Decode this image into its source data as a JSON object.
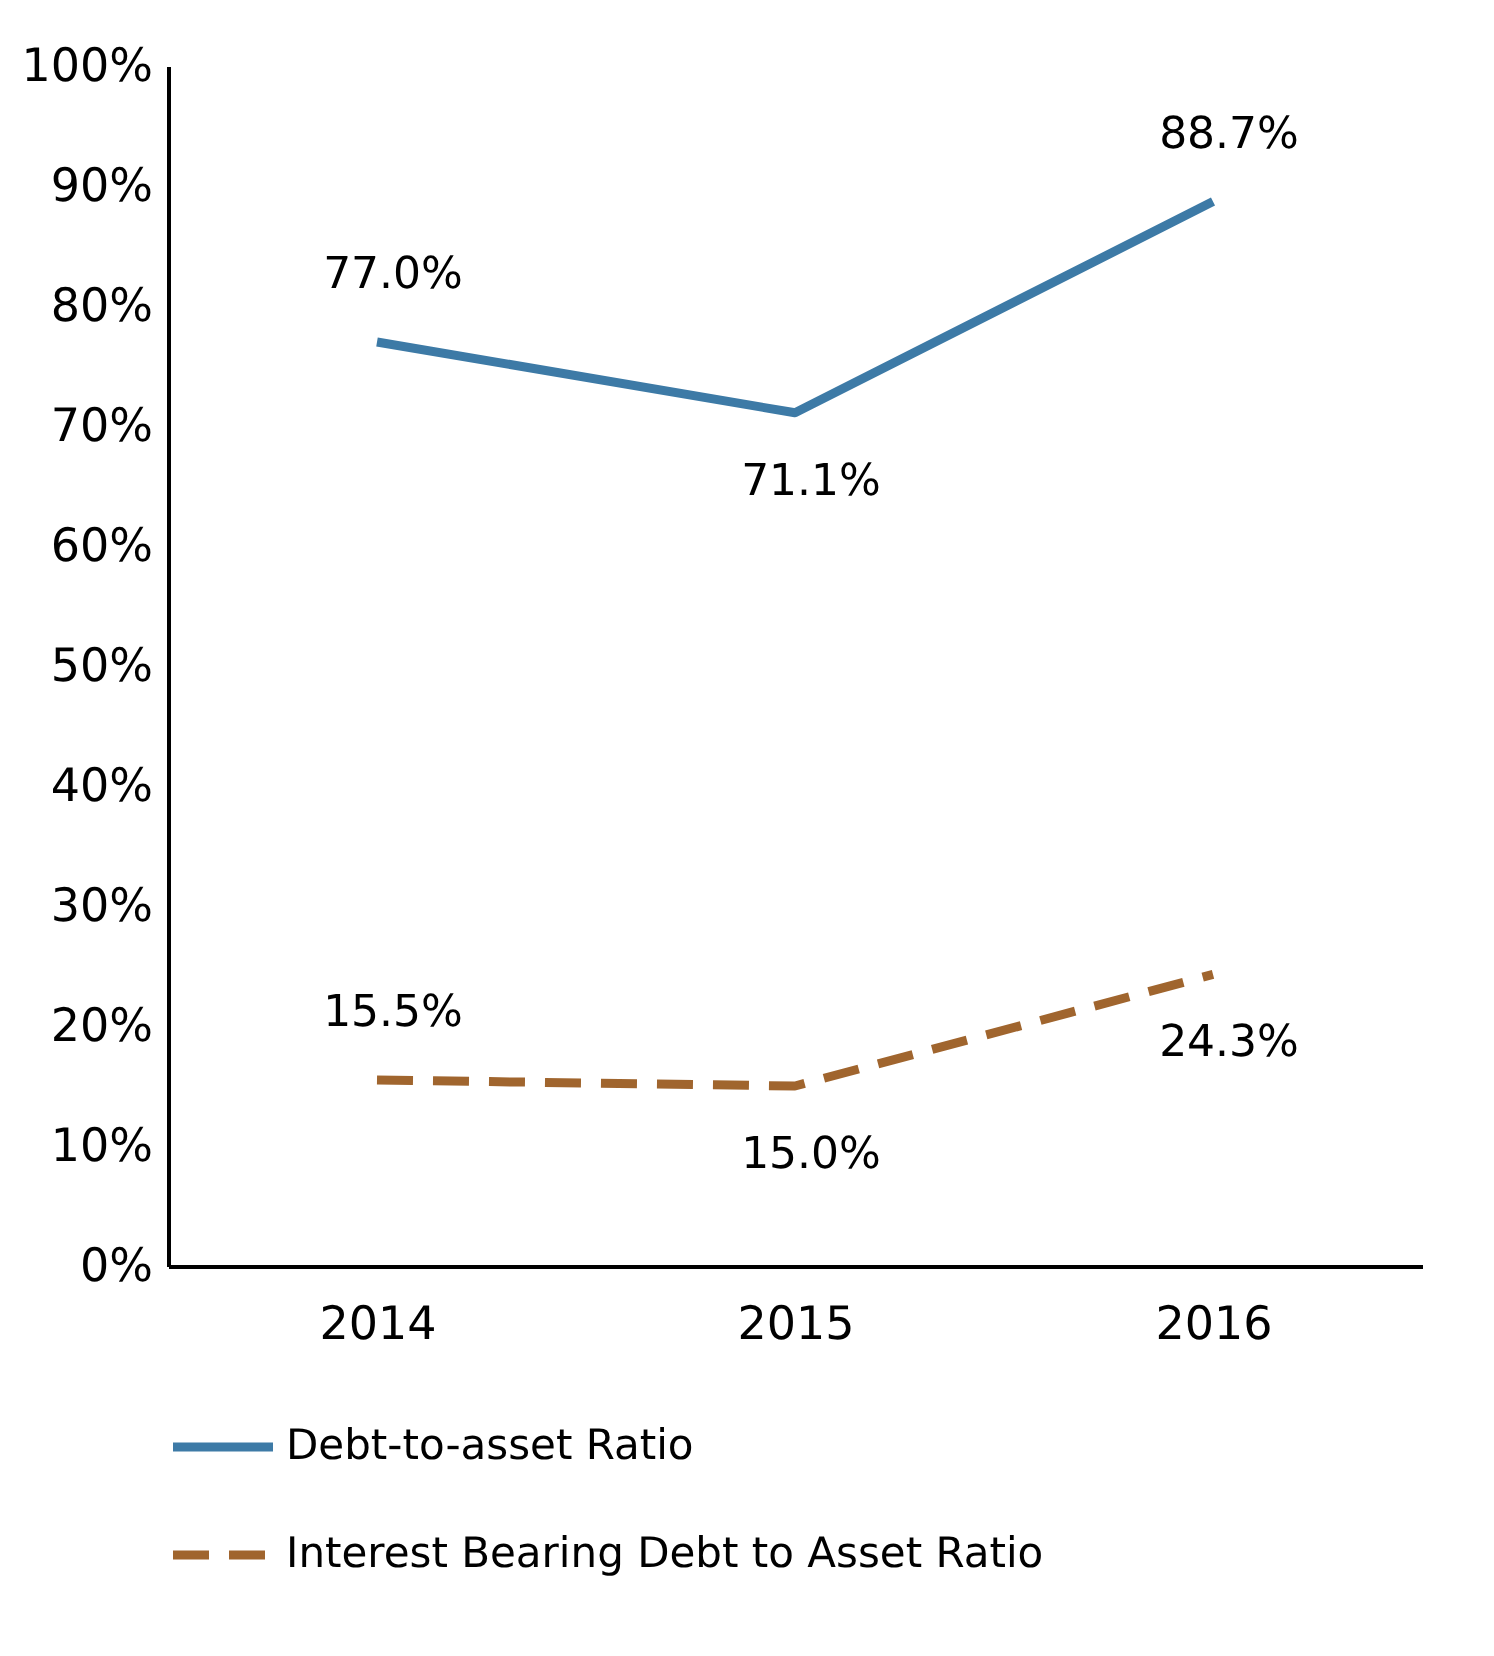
{
  "chart_data": {
    "type": "line",
    "categories": [
      "2014",
      "2015",
      "2016"
    ],
    "series": [
      {
        "name": "Debt-to-asset Ratio",
        "color": "#3d7aa6",
        "line_style": "solid",
        "values": [
          77.0,
          71.1,
          88.7
        ],
        "value_labels": [
          "77.0%",
          "71.1%",
          "88.7%"
        ]
      },
      {
        "name": "Interest Bearing Debt to Asset Ratio",
        "color": "#a0652e",
        "line_style": "dashed",
        "values": [
          15.5,
          15.0,
          24.3
        ],
        "value_labels": [
          "15.5%",
          "15.0%",
          "24.3%"
        ]
      }
    ],
    "ylim": [
      0,
      100
    ],
    "yticks": [
      {
        "value": 0,
        "label": "0%"
      },
      {
        "value": 10,
        "label": "10%"
      },
      {
        "value": 20,
        "label": "20%"
      },
      {
        "value": 30,
        "label": "30%"
      },
      {
        "value": 40,
        "label": "40%"
      },
      {
        "value": 50,
        "label": "50%"
      },
      {
        "value": 60,
        "label": "60%"
      },
      {
        "value": 70,
        "label": "70%"
      },
      {
        "value": 80,
        "label": "80%"
      },
      {
        "value": 90,
        "label": "90%"
      },
      {
        "value": 100,
        "label": "100%"
      }
    ],
    "grid": false,
    "legend": "bottom",
    "marker": "none"
  }
}
